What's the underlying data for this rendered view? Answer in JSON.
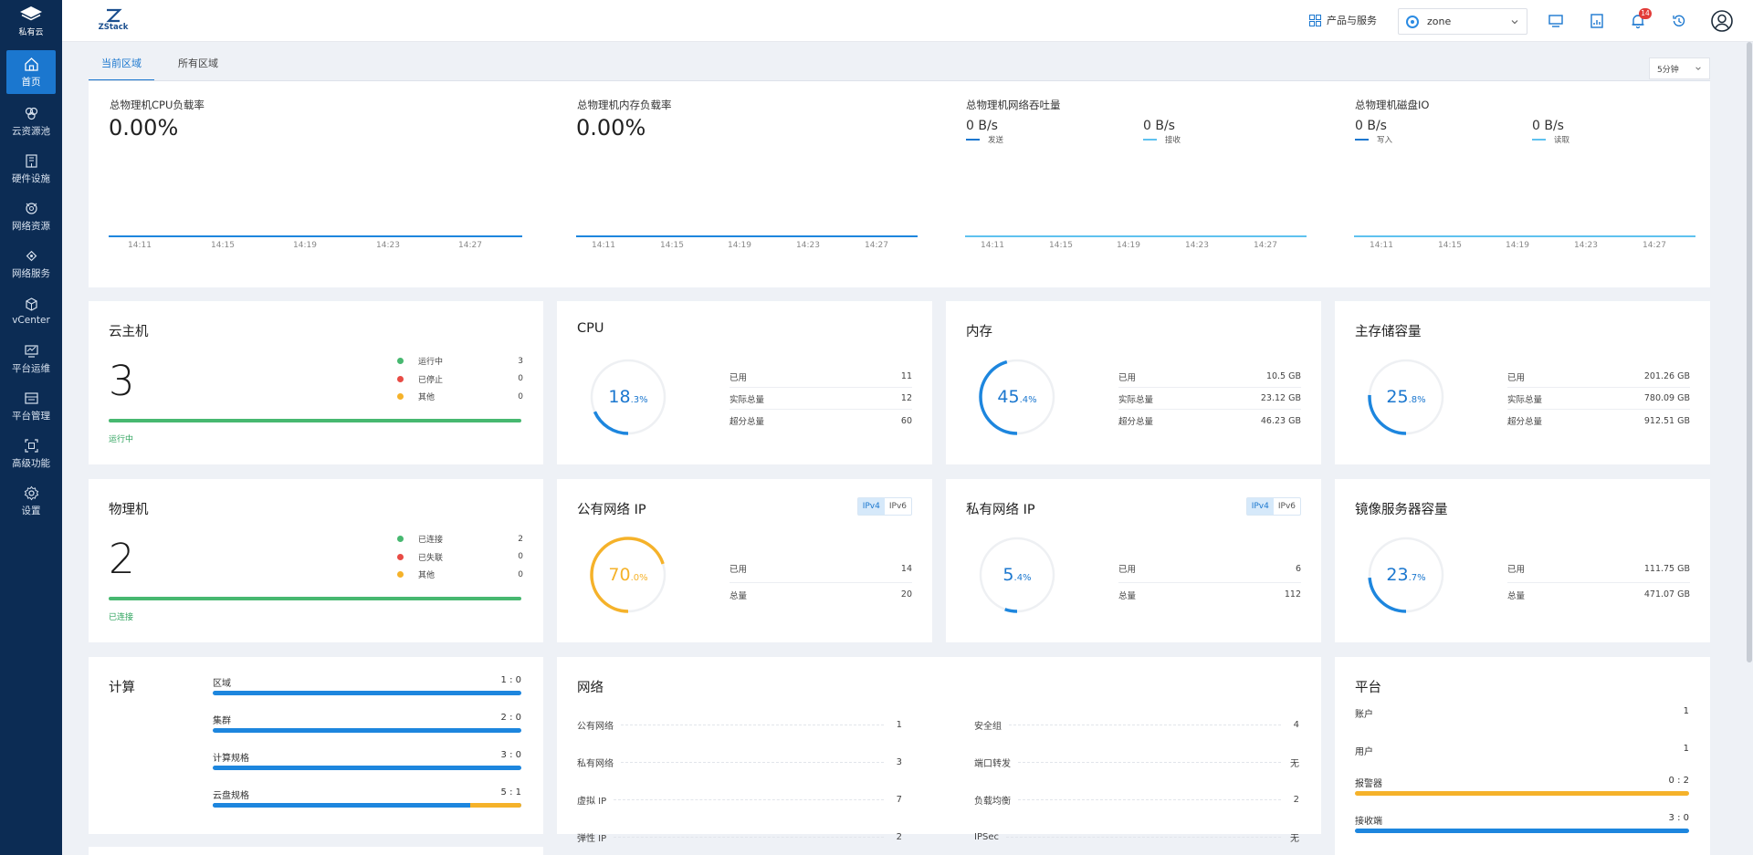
{
  "sidebar": {
    "brand": "私有云",
    "items": [
      {
        "label": "首页",
        "icon": "home-icon"
      },
      {
        "label": "云资源池",
        "icon": "resource-pool-icon"
      },
      {
        "label": "硬件设施",
        "icon": "hardware-icon"
      },
      {
        "label": "网络资源",
        "icon": "network-resource-icon"
      },
      {
        "label": "网络服务",
        "icon": "network-service-icon"
      },
      {
        "label": "vCenter",
        "icon": "vcenter-icon"
      },
      {
        "label": "平台运维",
        "icon": "ops-icon"
      },
      {
        "label": "平台管理",
        "icon": "platform-manage-icon"
      },
      {
        "label": "高级功能",
        "icon": "advanced-icon"
      },
      {
        "label": "设置",
        "icon": "settings-icon"
      }
    ]
  },
  "topbar": {
    "logo": "ZStack",
    "products_label": "产品与服务",
    "zone_value": "zone",
    "bell_count": "14"
  },
  "tabs": [
    "当前区域",
    "所有区域"
  ],
  "time_range": "5分钟",
  "monitors": {
    "cpu": {
      "title": "总物理机CPU负载率",
      "value": "0.00%"
    },
    "mem": {
      "title": "总物理机内存负载率",
      "value": "0.00%"
    },
    "net": {
      "title": "总物理机网络吞吐量",
      "a_val": "0 B/s",
      "a_lab": "发送",
      "b_val": "0 B/s",
      "b_lab": "接收"
    },
    "disk": {
      "title": "总物理机磁盘IO",
      "a_val": "0 B/s",
      "a_lab": "写入",
      "b_val": "0 B/s",
      "b_lab": "读取"
    },
    "ticks": [
      "14:11",
      "14:15",
      "14:19",
      "14:23",
      "14:27"
    ]
  },
  "vm": {
    "title": "云主机",
    "count": "3",
    "caption": "运行中",
    "status": [
      {
        "label": "运行中",
        "count": "3",
        "color": "#47b870"
      },
      {
        "label": "已停止",
        "count": "0",
        "color": "#e84b45"
      },
      {
        "label": "其他",
        "count": "0",
        "color": "#f5b22a"
      }
    ]
  },
  "host": {
    "title": "物理机",
    "count": "2",
    "caption": "已连接",
    "status": [
      {
        "label": "已连接",
        "count": "2",
        "color": "#47b870"
      },
      {
        "label": "已失联",
        "count": "0",
        "color": "#e84b45"
      },
      {
        "label": "其他",
        "count": "0",
        "color": "#f5b22a"
      }
    ]
  },
  "cpu": {
    "title": "CPU",
    "pct_int": "18",
    "pct_dec": ".3%",
    "percent": 18.3,
    "rows": [
      {
        "k": "已用",
        "v": "11"
      },
      {
        "k": "实际总量",
        "v": "12"
      },
      {
        "k": "超分总量",
        "v": "60"
      }
    ]
  },
  "memory": {
    "title": "内存",
    "pct_int": "45",
    "pct_dec": ".4%",
    "percent": 45.4,
    "rows": [
      {
        "k": "已用",
        "v": "10.5 GB"
      },
      {
        "k": "实际总量",
        "v": "23.12 GB"
      },
      {
        "k": "超分总量",
        "v": "46.23 GB"
      }
    ]
  },
  "primary_storage": {
    "title": "主存储容量",
    "pct_int": "25",
    "pct_dec": ".8%",
    "percent": 25.8,
    "rows": [
      {
        "k": "已用",
        "v": "201.26 GB"
      },
      {
        "k": "实际总量",
        "v": "780.09 GB"
      },
      {
        "k": "超分总量",
        "v": "912.51 GB"
      }
    ]
  },
  "public_ip": {
    "title": "公有网络 IP",
    "pct_int": "70",
    "pct_dec": ".0%",
    "percent": 70.0,
    "toggle": [
      "IPv4",
      "IPv6"
    ],
    "rows": [
      {
        "k": "已用",
        "v": "14"
      },
      {
        "k": "总量",
        "v": "20"
      }
    ]
  },
  "private_ip": {
    "title": "私有网络 IP",
    "pct_int": "5",
    "pct_dec": ".4%",
    "percent": 5.4,
    "toggle": [
      "IPv4",
      "IPv6"
    ],
    "rows": [
      {
        "k": "已用",
        "v": "6"
      },
      {
        "k": "总量",
        "v": "112"
      }
    ]
  },
  "image_storage": {
    "title": "镜像服务器容量",
    "pct_int": "23",
    "pct_dec": ".7%",
    "percent": 23.7,
    "rows": [
      {
        "k": "已用",
        "v": "111.75 GB"
      },
      {
        "k": "总量",
        "v": "471.07 GB"
      }
    ]
  },
  "compute": {
    "title": "计算",
    "items": [
      {
        "label": "区域",
        "value": "1 : 0",
        "fill": 1.0
      },
      {
        "label": "集群",
        "value": "2 : 0",
        "fill": 1.0
      },
      {
        "label": "计算规格",
        "value": "3 : 0",
        "fill": 1.0
      },
      {
        "label": "云盘规格",
        "value": "5 : 1",
        "fill": 0.8333
      }
    ]
  },
  "network": {
    "title": "网络",
    "left": [
      {
        "label": "公有网络",
        "value": "1"
      },
      {
        "label": "私有网络",
        "value": "3"
      },
      {
        "label": "虚拟 IP",
        "value": "7"
      },
      {
        "label": "弹性 IP",
        "value": "2"
      }
    ],
    "right": [
      {
        "label": "安全组",
        "value": "4"
      },
      {
        "label": "端口转发",
        "value": "无"
      },
      {
        "label": "负载均衡",
        "value": "2"
      },
      {
        "label": "IPSec",
        "value": "无"
      }
    ]
  },
  "platform": {
    "title": "平台",
    "items": [
      {
        "label": "账户",
        "value": "1"
      },
      {
        "label": "用户",
        "value": "1"
      },
      {
        "label": "报警器",
        "value": "0 : 2",
        "bar_color": "#f5b22a"
      },
      {
        "label": "接收端",
        "value": "3 : 0",
        "bar_color": "#1d86de"
      }
    ]
  },
  "colors": {
    "accent": "#1b77cf",
    "sidebar": "#0c2c54",
    "green": "#47b870",
    "red": "#e84b45",
    "yellow": "#f5b22a"
  }
}
